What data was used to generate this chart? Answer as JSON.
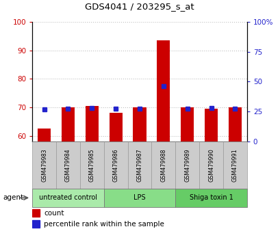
{
  "title": "GDS4041 / 203295_s_at",
  "samples": [
    "GSM479983",
    "GSM479984",
    "GSM479985",
    "GSM479986",
    "GSM479987",
    "GSM479988",
    "GSM479989",
    "GSM479990",
    "GSM479991"
  ],
  "count_values": [
    62.5,
    70.0,
    70.5,
    68.0,
    70.0,
    93.5,
    70.0,
    69.5,
    70.0
  ],
  "percentile_values": [
    27.0,
    27.5,
    27.8,
    27.2,
    27.3,
    46.0,
    27.2,
    27.8,
    27.5
  ],
  "ylim_left": [
    58,
    100
  ],
  "ylim_right": [
    0,
    100
  ],
  "yticks_left": [
    60,
    70,
    80,
    90,
    100
  ],
  "yticks_right": [
    0,
    25,
    50,
    75,
    100
  ],
  "ytick_labels_right": [
    "0",
    "25",
    "50",
    "75",
    "100%"
  ],
  "bar_color": "#cc0000",
  "dot_color": "#2222cc",
  "bar_width": 0.55,
  "dot_size": 18,
  "agent_label": "agent",
  "legend_count_label": "count",
  "legend_pct_label": "percentile rank within the sample",
  "title_fontsize": 9.5,
  "axis_label_color_left": "#cc0000",
  "axis_label_color_right": "#2222cc",
  "grid_color": "#000000",
  "grid_alpha": 0.25,
  "grid_linestyle": ":",
  "groups": [
    {
      "label": "untreated control",
      "start": 0,
      "end": 2,
      "color": "#aaeaaa"
    },
    {
      "label": "LPS",
      "start": 3,
      "end": 5,
      "color": "#88dd88"
    },
    {
      "label": "Shiga toxin 1",
      "start": 6,
      "end": 8,
      "color": "#66cc66"
    }
  ]
}
